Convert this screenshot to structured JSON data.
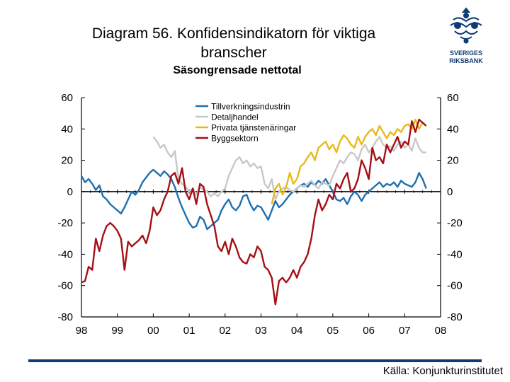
{
  "header": {
    "title_line1": "Diagram 56. Konfidensindikatorn för viktiga",
    "title_line2": "branscher",
    "subtitle": "Säsongrensade nettotal"
  },
  "logo": {
    "line1": "SVERIGES",
    "line2": "RIKSBANK",
    "color": "#0f3b74"
  },
  "footer": {
    "source": "Källa: Konjunkturinstitutet",
    "rule_color": "#0f3b74"
  },
  "chart_data": {
    "type": "line",
    "title": "Diagram 56. Konfidensindikatorn för viktiga branscher",
    "subtitle": "Säsongrensade nettotal",
    "xlabel": "",
    "ylabel": "",
    "xlim": [
      1998,
      2008
    ],
    "ylim": [
      -80,
      60
    ],
    "grid": false,
    "legend_position": "top-center",
    "x_ticks": [
      1998,
      1999,
      2000,
      2001,
      2002,
      2003,
      2004,
      2005,
      2006,
      2007,
      2008
    ],
    "x_tick_labels": [
      "98",
      "99",
      "00",
      "01",
      "02",
      "03",
      "04",
      "05",
      "06",
      "07",
      "08"
    ],
    "y_ticks": [
      60,
      40,
      20,
      0,
      -20,
      -40,
      -60,
      -80
    ],
    "y_tick_labels": [
      "60",
      "40",
      "20",
      "0",
      "-20",
      "-40",
      "-60",
      "-80"
    ],
    "y_ticks_right": [
      60,
      40,
      20,
      0,
      -20,
      -40,
      -60,
      -80
    ],
    "y_tick_labels_right": [
      "60",
      "40",
      "20",
      "0",
      "-20",
      "-40",
      "-60",
      "-80"
    ],
    "series": [
      {
        "name": "Tillverkningsindustrin",
        "color": "#1f6fae",
        "x": [
          1998.0,
          1998.1,
          1998.2,
          1998.3,
          1998.4,
          1998.5,
          1998.6,
          1998.7,
          1998.8,
          1998.9,
          1999.0,
          1999.1,
          1999.2,
          1999.3,
          1999.4,
          1999.5,
          1999.6,
          1999.7,
          1999.8,
          1999.9,
          2000.0,
          2000.1,
          2000.2,
          2000.3,
          2000.4,
          2000.5,
          2000.6,
          2000.7,
          2000.8,
          2000.9,
          2001.0,
          2001.1,
          2001.2,
          2001.3,
          2001.4,
          2001.5,
          2001.6,
          2001.7,
          2001.8,
          2001.9,
          2002.0,
          2002.1,
          2002.2,
          2002.3,
          2002.4,
          2002.5,
          2002.6,
          2002.7,
          2002.8,
          2002.9,
          2003.0,
          2003.1,
          2003.2,
          2003.3,
          2003.4,
          2003.5,
          2003.6,
          2003.7,
          2003.8,
          2003.9,
          2004.0,
          2004.1,
          2004.2,
          2004.3,
          2004.4,
          2004.5,
          2004.6,
          2004.7,
          2004.8,
          2004.9,
          2005.0,
          2005.1,
          2005.2,
          2005.3,
          2005.4,
          2005.5,
          2005.6,
          2005.7,
          2005.8,
          2005.9,
          2006.0,
          2006.1,
          2006.2,
          2006.3,
          2006.4,
          2006.5,
          2006.6,
          2006.7,
          2006.8,
          2006.9,
          2007.0,
          2007.1,
          2007.2,
          2007.3,
          2007.4,
          2007.5,
          2007.6
        ],
        "values": [
          10,
          6,
          8,
          5,
          1,
          4,
          -3,
          -5,
          -8,
          -10,
          -12,
          -14,
          -10,
          -5,
          0,
          -2,
          1,
          6,
          9,
          12,
          14,
          12,
          10,
          13,
          11,
          8,
          3,
          -4,
          -10,
          -15,
          -20,
          -23,
          -22,
          -16,
          -18,
          -24,
          -22,
          -20,
          -18,
          -12,
          -8,
          -5,
          -10,
          -12,
          -9,
          -3,
          -2,
          -8,
          -12,
          -9,
          -10,
          -14,
          -18,
          -12,
          -6,
          -10,
          -8,
          -5,
          -2,
          0,
          2,
          4,
          5,
          3,
          6,
          4,
          7,
          5,
          8,
          4,
          0,
          -5,
          -6,
          -4,
          -8,
          -3,
          0,
          -2,
          -6,
          -2,
          0,
          2,
          4,
          6,
          3,
          5,
          4,
          6,
          3,
          7,
          5,
          4,
          3,
          6,
          12,
          8,
          2
        ]
      },
      {
        "name": "Detaljhandel",
        "color": "#c8c8c8",
        "x": [
          2000.0,
          2000.1,
          2000.2,
          2000.3,
          2000.4,
          2000.5,
          2000.6,
          2000.7,
          2000.8,
          2000.9,
          2001.0,
          2001.1,
          2001.2,
          2001.3,
          2001.4,
          2001.5,
          2001.6,
          2001.7,
          2001.8,
          2001.9,
          2002.0,
          2002.1,
          2002.2,
          2002.3,
          2002.4,
          2002.5,
          2002.6,
          2002.7,
          2002.8,
          2002.9,
          2003.0,
          2003.1,
          2003.2,
          2003.3,
          2003.4,
          2003.5,
          2003.6,
          2003.7,
          2003.8,
          2003.9,
          2004.0,
          2004.1,
          2004.2,
          2004.3,
          2004.4,
          2004.5,
          2004.6,
          2004.7,
          2004.8,
          2004.9,
          2005.0,
          2005.1,
          2005.2,
          2005.3,
          2005.4,
          2005.5,
          2005.6,
          2005.7,
          2005.8,
          2005.9,
          2006.0,
          2006.1,
          2006.2,
          2006.3,
          2006.4,
          2006.5,
          2006.6,
          2006.7,
          2006.8,
          2006.9,
          2007.0,
          2007.1,
          2007.2,
          2007.3,
          2007.4,
          2007.5,
          2007.6
        ],
        "values": [
          35,
          32,
          28,
          30,
          25,
          22,
          26,
          8,
          5,
          3,
          0,
          2,
          -2,
          3,
          1,
          0,
          -3,
          -1,
          -3,
          0,
          2,
          10,
          15,
          20,
          22,
          18,
          20,
          16,
          18,
          15,
          16,
          5,
          2,
          8,
          -5,
          0,
          2,
          3,
          1,
          0,
          2,
          4,
          3,
          5,
          7,
          4,
          2,
          6,
          5,
          4,
          10,
          15,
          20,
          18,
          22,
          25,
          24,
          20,
          27,
          30,
          25,
          28,
          32,
          35,
          30,
          28,
          29,
          26,
          30,
          32,
          28,
          30,
          26,
          34,
          28,
          25,
          25
        ]
      },
      {
        "name": "Privata tjänstenäringar",
        "color": "#e8b91a",
        "x": [
          2003.3,
          2003.4,
          2003.5,
          2003.6,
          2003.7,
          2003.8,
          2003.9,
          2004.0,
          2004.1,
          2004.2,
          2004.3,
          2004.4,
          2004.5,
          2004.6,
          2004.7,
          2004.8,
          2004.9,
          2005.0,
          2005.1,
          2005.2,
          2005.3,
          2005.4,
          2005.5,
          2005.6,
          2005.7,
          2005.8,
          2005.9,
          2006.0,
          2006.1,
          2006.2,
          2006.3,
          2006.4,
          2006.5,
          2006.6,
          2006.7,
          2006.8,
          2006.9,
          2007.0,
          2007.1,
          2007.2,
          2007.3,
          2007.4,
          2007.5,
          2007.6
        ],
        "values": [
          -8,
          2,
          5,
          -2,
          3,
          12,
          5,
          8,
          16,
          18,
          22,
          25,
          20,
          28,
          30,
          32,
          27,
          30,
          25,
          32,
          36,
          34,
          30,
          28,
          35,
          30,
          35,
          38,
          40,
          36,
          42,
          38,
          34,
          38,
          36,
          40,
          38,
          42,
          43,
          40,
          46,
          40,
          44,
          42
        ]
      },
      {
        "name": "Byggsektorn",
        "color": "#a50f15",
        "x": [
          1998.0,
          1998.1,
          1998.2,
          1998.3,
          1998.4,
          1998.5,
          1998.6,
          1998.7,
          1998.8,
          1998.9,
          1999.0,
          1999.1,
          1999.2,
          1999.3,
          1999.4,
          1999.5,
          1999.6,
          1999.7,
          1999.8,
          1999.9,
          2000.0,
          2000.1,
          2000.2,
          2000.3,
          2000.4,
          2000.5,
          2000.6,
          2000.7,
          2000.8,
          2000.9,
          2001.0,
          2001.1,
          2001.2,
          2001.3,
          2001.4,
          2001.5,
          2001.6,
          2001.7,
          2001.8,
          2001.9,
          2002.0,
          2002.1,
          2002.2,
          2002.3,
          2002.4,
          2002.5,
          2002.6,
          2002.7,
          2002.8,
          2002.9,
          2003.0,
          2003.1,
          2003.2,
          2003.3,
          2003.4,
          2003.5,
          2003.6,
          2003.7,
          2003.8,
          2003.9,
          2004.0,
          2004.1,
          2004.2,
          2004.3,
          2004.4,
          2004.5,
          2004.6,
          2004.7,
          2004.8,
          2004.9,
          2005.0,
          2005.1,
          2005.2,
          2005.3,
          2005.4,
          2005.5,
          2005.6,
          2005.7,
          2005.8,
          2005.9,
          2006.0,
          2006.1,
          2006.2,
          2006.3,
          2006.4,
          2006.5,
          2006.6,
          2006.7,
          2006.8,
          2006.9,
          2007.0,
          2007.1,
          2007.2,
          2007.3,
          2007.4,
          2007.5,
          2007.6
        ],
        "values": [
          -58,
          -57,
          -48,
          -50,
          -30,
          -38,
          -28,
          -22,
          -20,
          -22,
          -25,
          -30,
          -50,
          -32,
          -35,
          -33,
          -31,
          -28,
          -33,
          -25,
          -10,
          -15,
          -12,
          -5,
          0,
          10,
          12,
          5,
          15,
          0,
          -5,
          2,
          -8,
          5,
          3,
          -8,
          -15,
          -22,
          -35,
          -38,
          -32,
          -40,
          -30,
          -35,
          -42,
          -45,
          -46,
          -40,
          -42,
          -35,
          -38,
          -48,
          -50,
          -55,
          -72,
          -57,
          -55,
          -58,
          -55,
          -50,
          -55,
          -48,
          -45,
          -40,
          -30,
          -15,
          -5,
          -12,
          -8,
          -2,
          -5,
          5,
          2,
          8,
          12,
          0,
          2,
          8,
          20,
          15,
          8,
          28,
          20,
          22,
          18,
          30,
          25,
          30,
          35,
          28,
          32,
          30,
          45,
          38,
          46,
          44,
          42
        ]
      }
    ]
  }
}
